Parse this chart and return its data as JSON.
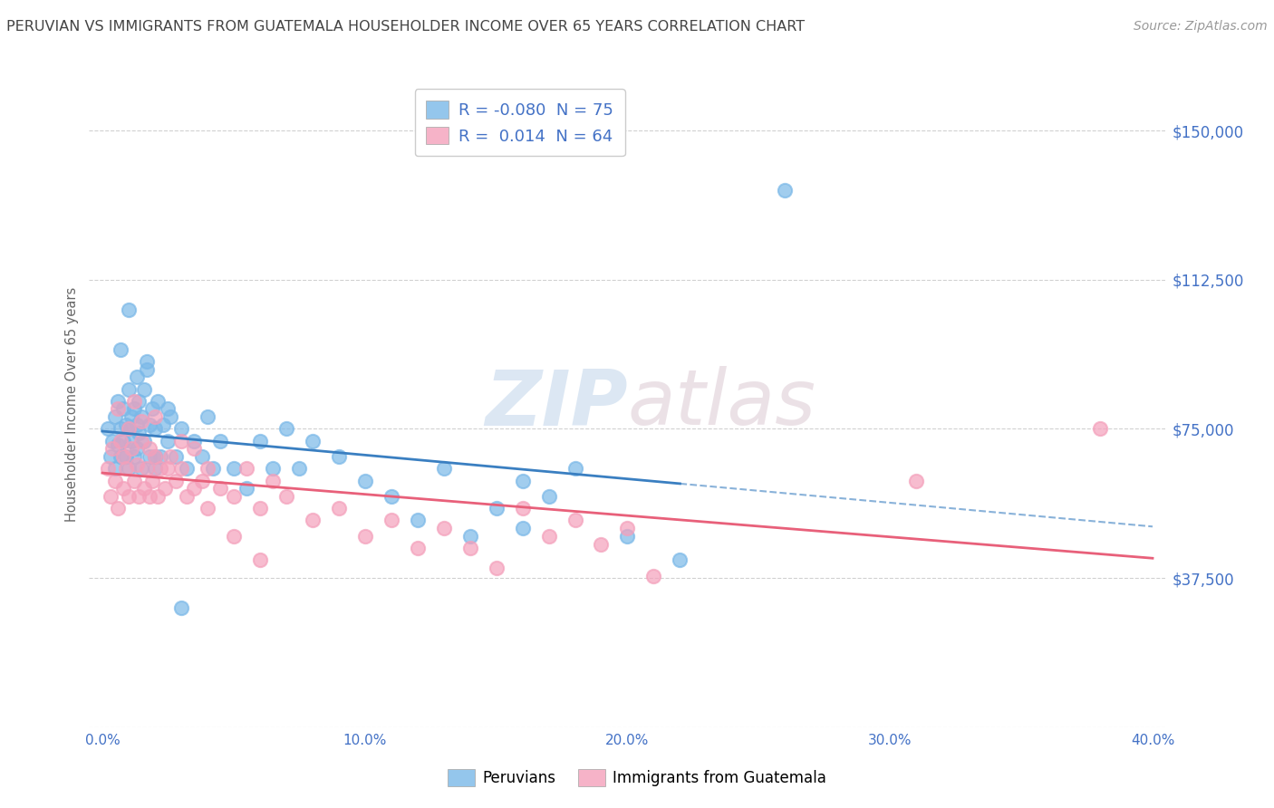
{
  "title": "PERUVIAN VS IMMIGRANTS FROM GUATEMALA HOUSEHOLDER INCOME OVER 65 YEARS CORRELATION CHART",
  "source": "Source: ZipAtlas.com",
  "ylabel": "Householder Income Over 65 years",
  "xlim": [
    -0.005,
    0.405
  ],
  "ylim": [
    0,
    162500
  ],
  "xtick_labels": [
    "0.0%",
    "",
    "10.0%",
    "",
    "20.0%",
    "",
    "30.0%",
    "",
    "40.0%"
  ],
  "xtick_vals": [
    0.0,
    0.05,
    0.1,
    0.15,
    0.2,
    0.25,
    0.3,
    0.35,
    0.4
  ],
  "ytick_vals": [
    0,
    37500,
    75000,
    112500,
    150000
  ],
  "ytick_labels": [
    "",
    "$37,500",
    "$75,000",
    "$112,500",
    "$150,000"
  ],
  "series1_color": "#7ab8e8",
  "series2_color": "#f4a0bb",
  "line1_color": "#3a7fc1",
  "line2_color": "#e8607a",
  "R1": -0.08,
  "N1": 75,
  "R2": 0.014,
  "N2": 64,
  "label1": "Peruvians",
  "label2": "Immigrants from Guatemala",
  "bg_color": "#ffffff",
  "grid_color": "#cccccc",
  "title_color": "#444444",
  "tick_color": "#4472c6",
  "legend_color": "#4472c6",
  "line1_solid_end": 0.22,
  "peruvian_x": [
    0.002,
    0.003,
    0.004,
    0.005,
    0.005,
    0.006,
    0.006,
    0.007,
    0.007,
    0.008,
    0.008,
    0.009,
    0.009,
    0.01,
    0.01,
    0.01,
    0.011,
    0.011,
    0.012,
    0.012,
    0.013,
    0.013,
    0.014,
    0.014,
    0.015,
    0.015,
    0.016,
    0.016,
    0.017,
    0.018,
    0.018,
    0.019,
    0.02,
    0.02,
    0.021,
    0.022,
    0.023,
    0.025,
    0.026,
    0.028,
    0.03,
    0.032,
    0.035,
    0.038,
    0.04,
    0.042,
    0.045,
    0.05,
    0.055,
    0.06,
    0.065,
    0.07,
    0.075,
    0.08,
    0.09,
    0.1,
    0.11,
    0.12,
    0.13,
    0.14,
    0.15,
    0.16,
    0.17,
    0.18,
    0.2,
    0.22,
    0.007,
    0.01,
    0.013,
    0.017,
    0.02,
    0.025,
    0.03,
    0.26,
    0.16
  ],
  "peruvian_y": [
    75000,
    68000,
    72000,
    78000,
    65000,
    82000,
    71000,
    75000,
    68000,
    80000,
    72000,
    76000,
    68000,
    85000,
    75000,
    65000,
    78000,
    72000,
    80000,
    68000,
    76000,
    70000,
    82000,
    74000,
    78000,
    65000,
    85000,
    72000,
    90000,
    76000,
    68000,
    80000,
    75000,
    65000,
    82000,
    68000,
    76000,
    72000,
    78000,
    68000,
    75000,
    65000,
    72000,
    68000,
    78000,
    65000,
    72000,
    65000,
    60000,
    72000,
    65000,
    75000,
    65000,
    72000,
    68000,
    62000,
    58000,
    52000,
    65000,
    48000,
    55000,
    62000,
    58000,
    65000,
    48000,
    42000,
    95000,
    105000,
    88000,
    92000,
    68000,
    80000,
    30000,
    135000,
    50000
  ],
  "guatemala_x": [
    0.002,
    0.003,
    0.004,
    0.005,
    0.006,
    0.007,
    0.008,
    0.009,
    0.01,
    0.011,
    0.012,
    0.013,
    0.014,
    0.015,
    0.016,
    0.017,
    0.018,
    0.019,
    0.02,
    0.021,
    0.022,
    0.024,
    0.026,
    0.028,
    0.03,
    0.032,
    0.035,
    0.038,
    0.04,
    0.045,
    0.05,
    0.055,
    0.06,
    0.065,
    0.07,
    0.08,
    0.09,
    0.1,
    0.11,
    0.12,
    0.13,
    0.14,
    0.15,
    0.16,
    0.17,
    0.18,
    0.19,
    0.2,
    0.006,
    0.008,
    0.01,
    0.012,
    0.015,
    0.018,
    0.02,
    0.025,
    0.03,
    0.035,
    0.04,
    0.05,
    0.06,
    0.38,
    0.31,
    0.21
  ],
  "guatemala_y": [
    65000,
    58000,
    70000,
    62000,
    55000,
    72000,
    60000,
    65000,
    58000,
    70000,
    62000,
    66000,
    58000,
    72000,
    60000,
    65000,
    58000,
    62000,
    68000,
    58000,
    65000,
    60000,
    68000,
    62000,
    65000,
    58000,
    70000,
    62000,
    65000,
    60000,
    58000,
    65000,
    55000,
    62000,
    58000,
    52000,
    55000,
    48000,
    52000,
    45000,
    50000,
    45000,
    40000,
    55000,
    48000,
    52000,
    46000,
    50000,
    80000,
    68000,
    75000,
    82000,
    77000,
    70000,
    78000,
    65000,
    72000,
    60000,
    55000,
    48000,
    42000,
    75000,
    62000,
    38000
  ]
}
